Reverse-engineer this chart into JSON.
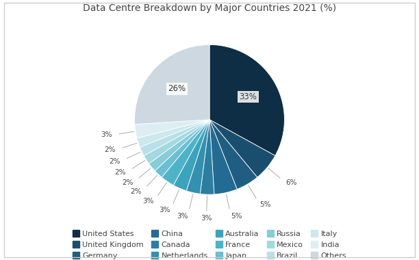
{
  "title": "Data Centre Breakdown by Major Countries 2021 (%)",
  "labels": [
    "United States",
    "United Kingdom",
    "Germany",
    "China",
    "Canada",
    "Netherlands",
    "Australia",
    "France",
    "Japan",
    "Russia",
    "Mexico",
    "Brazil",
    "Italy",
    "India",
    "Others"
  ],
  "values": [
    33,
    6,
    5,
    5,
    3,
    3,
    3,
    3,
    2,
    2,
    2,
    2,
    2,
    3,
    26
  ],
  "colors": [
    "#0d2e44",
    "#1a4e6e",
    "#1f5e82",
    "#236b92",
    "#2b7ea0",
    "#3390ae",
    "#3da3bc",
    "#4fb3c8",
    "#6abfd2",
    "#87ccd9",
    "#a4d8e1",
    "#b8e0e8",
    "#cce8ee",
    "#ddeef3",
    "#cdd8e0"
  ],
  "background_color": "#ffffff",
  "border_color": "#cccccc",
  "title_fontsize": 10,
  "legend_fontsize": 8,
  "label_fontsize": 8
}
